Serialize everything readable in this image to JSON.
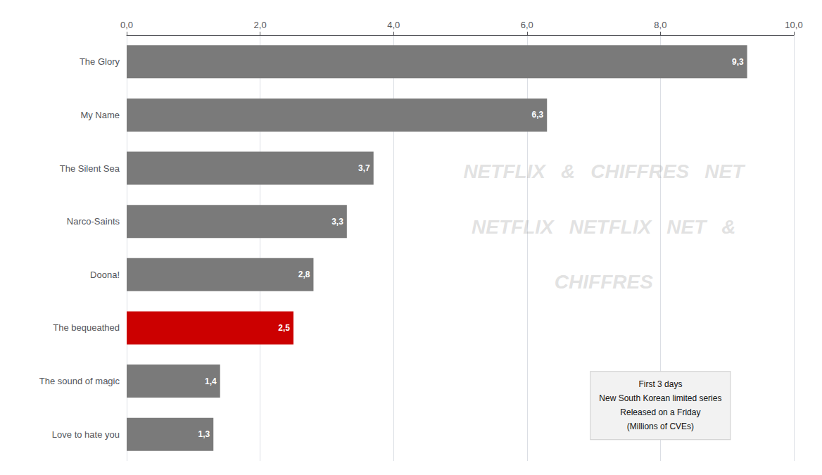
{
  "chart_data": {
    "type": "bar",
    "orientation": "horizontal",
    "categories": [
      "Love to hate you",
      "The sound of magic",
      "The bequeathed",
      "Doona!",
      "Narco-Saints",
      "The Silent Sea",
      "My Name",
      "The Glory"
    ],
    "values": [
      1.3,
      1.4,
      2.5,
      2.8,
      3.3,
      3.7,
      6.3,
      9.3
    ],
    "colors": [
      "#7a7a7a",
      "#7a7a7a",
      "#cc0000",
      "#7a7a7a",
      "#7a7a7a",
      "#7a7a7a",
      "#7a7a7a",
      "#7a7a7a"
    ],
    "data_labels": true,
    "value_labels": [
      "1,3",
      "1,4",
      "2,5",
      "2,8",
      "3,3",
      "3,7",
      "6,3",
      "9,3"
    ],
    "xlim": [
      0,
      10
    ],
    "xticks": [
      {
        "value": 0,
        "label": "0,0"
      },
      {
        "value": 2,
        "label": "2,0"
      },
      {
        "value": 4,
        "label": "4,0"
      },
      {
        "value": 6,
        "label": "6,0"
      },
      {
        "value": 8,
        "label": "8,0"
      },
      {
        "value": 10,
        "label": "10,0"
      }
    ],
    "grid": true,
    "annotations": [
      "First 3 days\nNew South Korean limited series\nReleased on a Friday\n(Millions of CVEs)",
      "NETFLIX",
      "&",
      "CHIFFRES",
      "NET",
      "NETFLIX",
      "NETFLIX",
      "NET",
      "&",
      "CHIFFRES"
    ]
  }
}
